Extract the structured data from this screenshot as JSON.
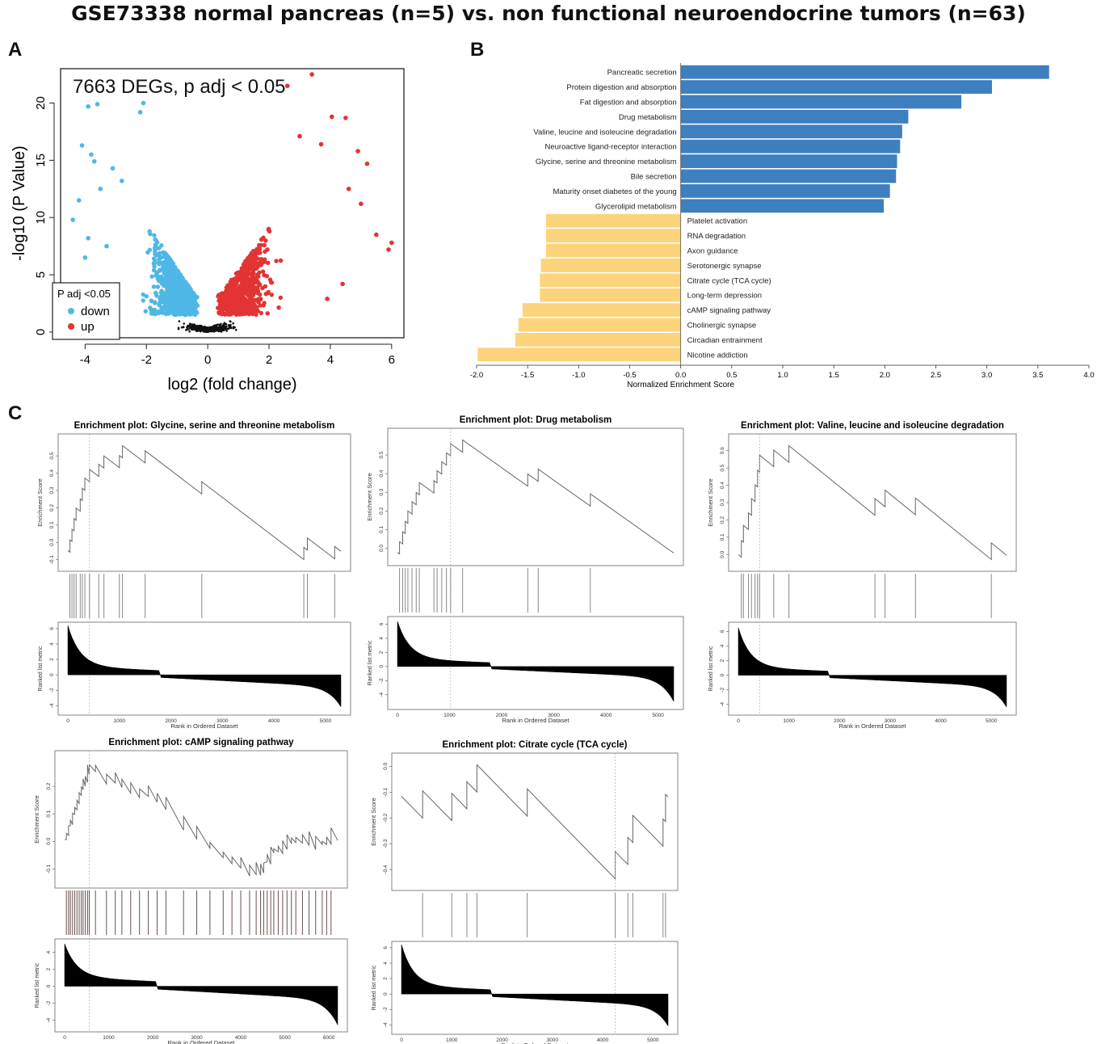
{
  "figure": {
    "title": "GSE73338 normal pancreas (n=5) vs. non functional neuroendocrine tumors (n=63)",
    "panel_labels": [
      "A",
      "B",
      "C"
    ]
  },
  "colors": {
    "down": "#4fb7e6",
    "up": "#e23434",
    "ns": "#111111",
    "pos_bar": "#3e7fc0",
    "neg_bar": "#fdd47c"
  },
  "chart_data": [
    {
      "id": "volcano",
      "type": "scatter",
      "annotation": "7663 DEGs, p adj < 0.05",
      "xlabel": "log2 (fold change)",
      "ylabel": "-log10 (P Value)",
      "xlim": [
        -4.8,
        6.4
      ],
      "ylim": [
        -0.5,
        23
      ],
      "xticks": [
        -4,
        -2,
        0,
        2,
        4,
        6
      ],
      "yticks": [
        0,
        5,
        10,
        15,
        20
      ],
      "legend": {
        "title": "P adj <0.05",
        "position": "bottom-left",
        "items": [
          "down",
          "up"
        ]
      },
      "highlight_points": {
        "down": [
          [
            -3.9,
            19.7
          ],
          [
            -3.6,
            19.9
          ],
          [
            -2.1,
            20
          ],
          [
            -2.2,
            19.2
          ],
          [
            -4.1,
            16.3
          ],
          [
            -3.8,
            15.5
          ],
          [
            -4.4,
            9.8
          ],
          [
            -4.2,
            11.5
          ],
          [
            -3.7,
            14.9
          ],
          [
            -3.1,
            14.3
          ],
          [
            -3.5,
            12.5
          ],
          [
            -3.9,
            8.2
          ],
          [
            -3.3,
            7.5
          ],
          [
            -2.8,
            13.2
          ],
          [
            -4.0,
            6.5
          ]
        ],
        "up": [
          [
            3.4,
            22.5
          ],
          [
            2.6,
            21.5
          ],
          [
            4.05,
            18.8
          ],
          [
            4.5,
            18.7
          ],
          [
            3.0,
            17.1
          ],
          [
            3.7,
            16.4
          ],
          [
            4.9,
            15.8
          ],
          [
            5.2,
            14.7
          ],
          [
            5.5,
            8.5
          ],
          [
            5.9,
            7.2
          ],
          [
            6.0,
            7.8
          ],
          [
            4.6,
            12.5
          ],
          [
            5.0,
            11.2
          ],
          [
            4.4,
            4.2
          ],
          [
            3.9,
            2.9
          ]
        ]
      }
    },
    {
      "id": "nes",
      "type": "bar",
      "orientation": "horizontal",
      "xlabel": "Normalized Enrichment Score",
      "xlim": [
        -2.0,
        4.0
      ],
      "xticks": [
        "-2.0",
        "-1.5",
        "-1.0",
        "-0.5",
        "0.0",
        "0.5",
        "1.0",
        "1.5",
        "2.0",
        "2.5",
        "3.0",
        "3.5",
        "4.0"
      ],
      "categories": [
        "Pancreatic secretion",
        "Protein digestion and absorption",
        "Fat digestion and absorption",
        "Drug metabolism",
        "Valine, leucine and isoleucine degradation",
        "Neuroactive ligand-receptor interaction",
        "Glycine, serine and threonine metabolism",
        "Bile secretion",
        "Maturity onset diabetes of the young",
        "Glycerolipid metabolism",
        "Platelet activation",
        "RNA degradation",
        "Axon guidance",
        "Serotonergic synapse",
        "Citrate cycle (TCA cycle)",
        "Long-term depression",
        "cAMP signaling pathway",
        "Cholinergic synapse",
        "Circadian entrainment",
        "Nicotine addiction"
      ],
      "values": [
        3.61,
        3.05,
        2.75,
        2.23,
        2.17,
        2.15,
        2.12,
        2.11,
        2.05,
        1.99,
        -1.32,
        -1.32,
        -1.32,
        -1.37,
        -1.38,
        -1.38,
        -1.55,
        -1.59,
        -1.62,
        -1.99
      ]
    },
    {
      "id": "gsea1",
      "type": "line",
      "title": "Enrichment plot: Glycine, serine and threonine metabolism",
      "es_ylabel": "Enrichment Score",
      "rank_ylabel": "Ranked list metric",
      "xlabel": "Rank in Ordered Dataset",
      "xmax": 5300,
      "es_lim": [
        -0.12,
        0.58
      ],
      "es_yticks": [
        "-0.1",
        "0.0",
        "0.1",
        "0.2",
        "0.3",
        "0.4",
        "0.5"
      ],
      "rank_yticks": [
        "-4",
        "-2",
        "0",
        "2",
        "4",
        "6"
      ],
      "rank_lim": [
        -4.6,
        6.2
      ],
      "rank_min": -4.2,
      "rank_max": 5.9,
      "xticks": [
        "0",
        "1000",
        "2000",
        "3000",
        "4000",
        "5000"
      ],
      "hits": [
        40,
        80,
        120,
        160,
        240,
        280,
        330,
        420,
        600,
        700,
        1000,
        1060,
        1500,
        2600,
        4580,
        4650,
        5180
      ],
      "peak_rank": 420
    },
    {
      "id": "gsea2",
      "type": "line",
      "title": "Enrichment plot: Drug metabolism",
      "es_ylabel": "Enrichment Score",
      "rank_ylabel": "Ranked list metric",
      "xlabel": "Rank in Ordered Dataset",
      "xmax": 5300,
      "es_lim": [
        -0.05,
        0.6
      ],
      "es_yticks": [
        "0.0",
        "0.1",
        "0.2",
        "0.3",
        "0.4",
        "0.5"
      ],
      "rank_yticks": [
        "-4",
        "-2",
        "0",
        "2",
        "4",
        "6"
      ],
      "rank_lim": [
        -5.4,
        6.4
      ],
      "rank_min": -5.0,
      "rank_max": 5.9,
      "xticks": [
        "0",
        "1000",
        "2000",
        "3000",
        "4000",
        "5000"
      ],
      "hits": [
        40,
        100,
        150,
        200,
        280,
        360,
        420,
        700,
        760,
        850,
        940,
        1020,
        1250,
        2500,
        2700,
        3700
      ],
      "peak_rank": 1020
    },
    {
      "id": "gsea3",
      "type": "line",
      "title": "Enrichment plot: Valine, leucine and isoleucine degradation",
      "es_ylabel": "Enrichment Score",
      "rank_ylabel": "Ranked list metric",
      "xlabel": "Rank in Ordered Dataset",
      "xmax": 5300,
      "es_lim": [
        -0.05,
        0.65
      ],
      "es_yticks": [
        "0.0",
        "0.1",
        "0.2",
        "0.3",
        "0.4",
        "0.5",
        "0.6"
      ],
      "rank_yticks": [
        "-4",
        "-2",
        "0",
        "2",
        "4",
        "6"
      ],
      "rank_lim": [
        -4.8,
        6.6
      ],
      "rank_min": -4.4,
      "rank_max": 6.0,
      "xticks": [
        "0",
        "1000",
        "2000",
        "3000",
        "4000",
        "5000"
      ],
      "hits": [
        60,
        100,
        200,
        260,
        330,
        380,
        420,
        700,
        1000,
        2700,
        2900,
        3500,
        5000
      ],
      "peak_rank": 420
    },
    {
      "id": "gsea4",
      "type": "line",
      "title": "Enrichment plot: cAMP signaling pathway",
      "es_ylabel": "Enrichment Score",
      "rank_ylabel": "Ranked list metric",
      "xlabel": "Rank in Ordered Dataset",
      "xmax": 6200,
      "es_lim": [
        -0.14,
        0.3
      ],
      "es_yticks": [
        "-0.1",
        "0.0",
        "0.1",
        "0.2"
      ],
      "rank_yticks": [
        "-4",
        "-2",
        "0",
        "2",
        "4"
      ],
      "rank_lim": [
        -4.8,
        5.0
      ],
      "rank_min": -4.6,
      "rank_max": 4.5,
      "xticks": [
        "0",
        "1000",
        "2000",
        "3000",
        "4000",
        "5000",
        "6000"
      ],
      "hits": [
        40,
        90,
        130,
        180,
        230,
        280,
        330,
        380,
        420,
        470,
        520,
        560,
        700,
        950,
        1150,
        1300,
        1500,
        1700,
        1900,
        2100,
        2300,
        2700,
        3000,
        3300,
        3600,
        3800,
        4000,
        4200,
        4350,
        4450,
        4520,
        4600,
        4680,
        4750,
        4850,
        4950,
        5050,
        5150,
        5250,
        5400,
        5550,
        5700,
        5850,
        5950,
        6050
      ],
      "peak_rank": 560
    },
    {
      "id": "gsea5",
      "type": "line",
      "title": "Enrichment plot: Citrate cycle (TCA cycle)",
      "es_ylabel": "Enrichment Score",
      "rank_ylabel": "Ranked list metric",
      "xlabel": "Rank in Ordered Dataset",
      "xmax": 5300,
      "es_lim": [
        -0.45,
        0.02
      ],
      "es_yticks": [
        "-0.4",
        "-0.3",
        "-0.2",
        "-0.1",
        "0.0"
      ],
      "rank_yticks": [
        "-4",
        "-2",
        "0",
        "2",
        "4",
        "6"
      ],
      "rank_lim": [
        -4.6,
        6.2
      ],
      "rank_min": -4.2,
      "rank_max": 5.9,
      "xticks": [
        "0",
        "1000",
        "2000",
        "3000",
        "4000",
        "5000"
      ],
      "hits": [
        420,
        1000,
        1300,
        1500,
        2500,
        4250,
        4500,
        4600,
        5200,
        5250
      ],
      "peak_rank": 4250
    }
  ]
}
